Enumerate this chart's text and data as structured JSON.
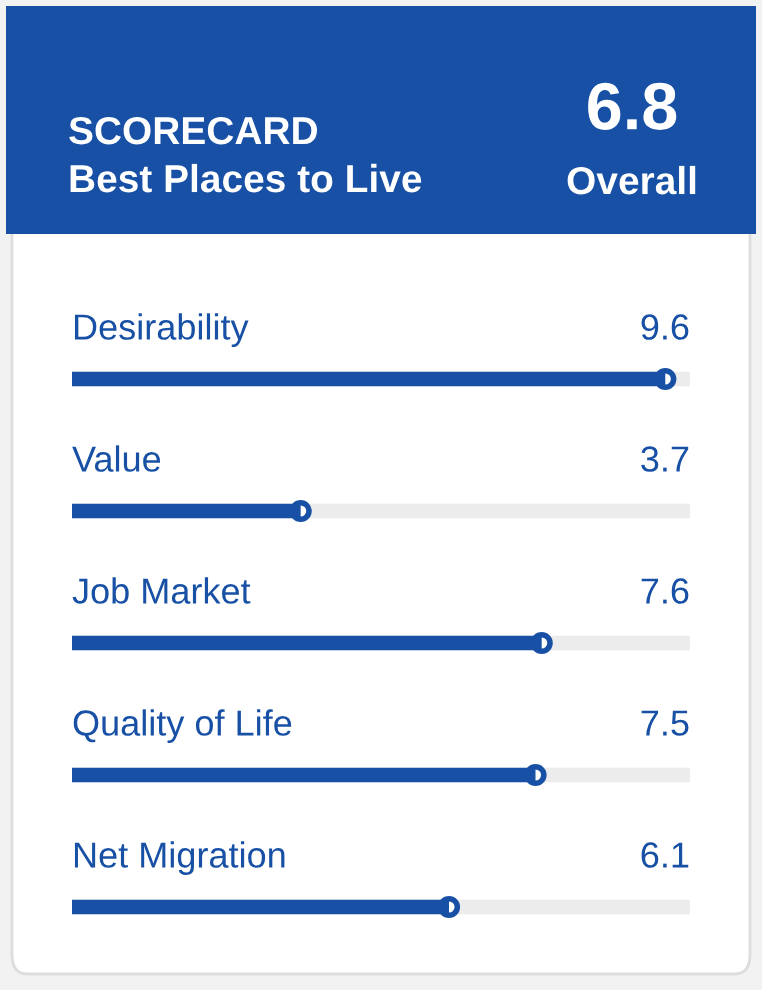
{
  "chart_data": {
    "type": "bar",
    "orientation": "horizontal",
    "title": "SCORECARD",
    "subtitle": "Best Places to Live",
    "annotations": [
      "6.8",
      "Overall"
    ],
    "categories": [
      "Desirability",
      "Value",
      "Job Market",
      "Quality of Life",
      "Net Migration"
    ],
    "values": [
      9.6,
      3.7,
      7.6,
      7.5,
      6.1
    ],
    "color": "#1750a4",
    "xlim": [
      0,
      10
    ],
    "data_labels": true,
    "marker": "circle"
  }
}
